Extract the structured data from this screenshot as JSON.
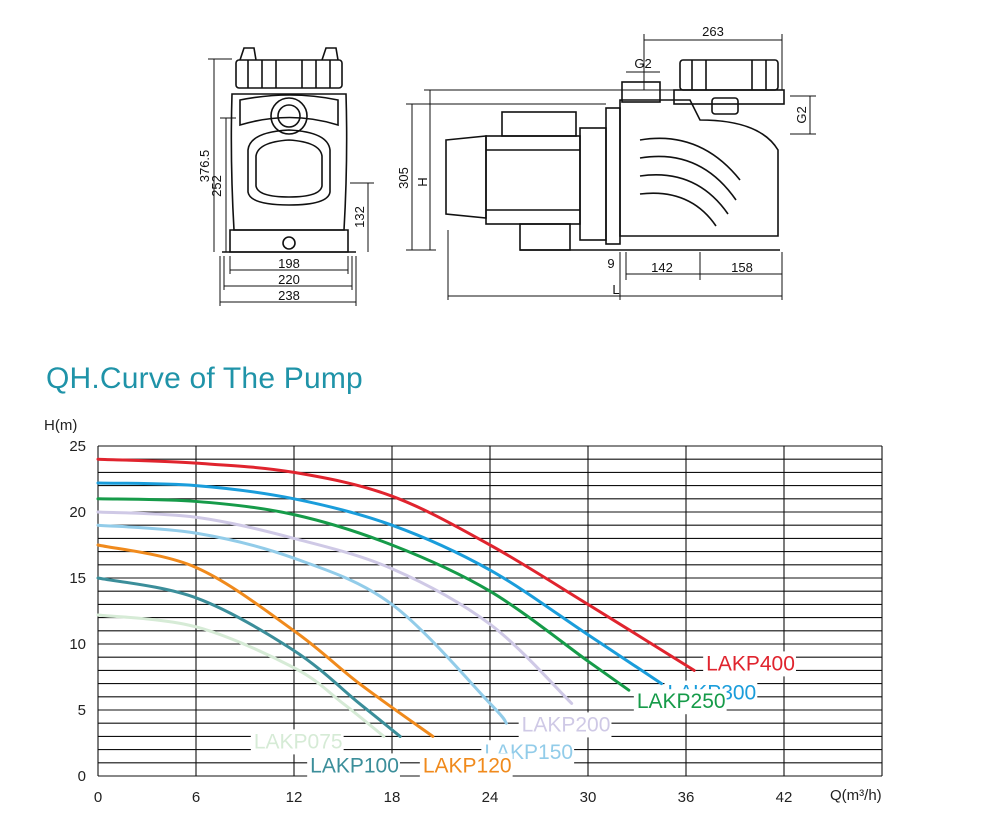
{
  "drawing": {
    "front_dims": [
      "376.5",
      "252",
      "132",
      "198",
      "220",
      "238"
    ],
    "side_dims": [
      "263",
      "G2",
      "G2",
      "305",
      "H",
      "9",
      "142",
      "158",
      "L"
    ]
  },
  "chart_data": {
    "type": "line",
    "title": "QH.Curve of The Pump",
    "ylabel": "H(m)",
    "xlabel": "Q(m³/h)",
    "xlim": [
      0,
      48
    ],
    "ylim": [
      0,
      25
    ],
    "xticks": [
      "0",
      "6",
      "12",
      "18",
      "24",
      "30",
      "36",
      "42"
    ],
    "yticks": [
      "0",
      "5",
      "10",
      "15",
      "20",
      "25"
    ],
    "grid": true,
    "series": [
      {
        "name": "LAKP400",
        "color": "#e0242e",
        "x": [
          0,
          6,
          12,
          18,
          24,
          30,
          36.5
        ],
        "y": [
          24,
          23.7,
          23,
          21.2,
          17.5,
          13,
          8
        ]
      },
      {
        "name": "LAKP300",
        "color": "#1a9ddb",
        "x": [
          0,
          6,
          12,
          18,
          24,
          30,
          34.5
        ],
        "y": [
          22.2,
          22,
          21,
          19,
          15.6,
          10.7,
          7
        ]
      },
      {
        "name": "LAKP250",
        "color": "#169b49",
        "x": [
          0,
          6,
          12,
          18,
          24,
          30,
          32.5
        ],
        "y": [
          21,
          20.8,
          19.8,
          17.5,
          14,
          8.7,
          6.5
        ]
      },
      {
        "name": "LAKP200",
        "color": "#cfc9e6",
        "x": [
          0,
          6,
          12,
          18,
          24,
          29
        ],
        "y": [
          20,
          19.6,
          18,
          15.7,
          11.5,
          5.5
        ]
      },
      {
        "name": "LAKP150",
        "color": "#92cce9",
        "x": [
          0,
          6,
          12,
          18,
          24,
          25
        ],
        "y": [
          19,
          18.4,
          16.5,
          13,
          5.5,
          4
        ]
      },
      {
        "name": "LAKP120",
        "color": "#f08a1c",
        "x": [
          0,
          6,
          12,
          16,
          20.5
        ],
        "y": [
          17.5,
          15.8,
          11,
          7,
          3
        ]
      },
      {
        "name": "LAKP100",
        "color": "#3b8e9a",
        "x": [
          0,
          6,
          12,
          16,
          18.5
        ],
        "y": [
          15,
          13.5,
          9.5,
          5.5,
          3
        ]
      },
      {
        "name": "LAKP075",
        "color": "#d6ebd6",
        "x": [
          0,
          6,
          12,
          15,
          17.5
        ],
        "y": [
          12.2,
          11.3,
          8.2,
          5.5,
          3
        ]
      }
    ]
  }
}
